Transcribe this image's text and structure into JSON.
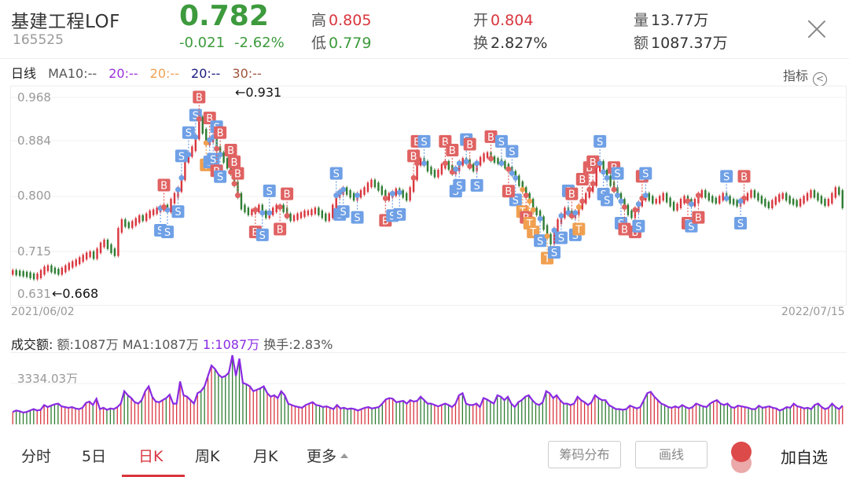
{
  "header": {
    "name": "基建工程LOF",
    "code": "165525",
    "price": "0.782",
    "change": "-0.021",
    "change_pct": "-2.62%",
    "high_label": "高",
    "high": "0.805",
    "low_label": "低",
    "low": "0.779",
    "open_label": "开",
    "open": "0.804",
    "turnover_label": "换",
    "turnover": "2.827%",
    "volume_label": "量",
    "volume": "13.77万",
    "amount_label": "额",
    "amount": "1087.37万",
    "close_icon": "close-icon"
  },
  "ma_legend": {
    "period": "日线",
    "items": [
      {
        "label": "MA10:--",
        "color": "#555555"
      },
      {
        "label": "20:--",
        "color": "#9b30d9"
      },
      {
        "label": "20:--",
        "color": "#f0a050"
      },
      {
        "label": "20:--",
        "color": "#1a1a80"
      },
      {
        "label": "30:--",
        "color": "#a0523a"
      }
    ],
    "indicator_label": "指标",
    "indicator_icon": "chevron-left-circle-icon"
  },
  "colors": {
    "up": "#d9363e",
    "down": "#2f7d32",
    "buy": "#e06262",
    "sell": "#6fa0e6",
    "t": "#f0a050",
    "ma": "#8a2be2"
  },
  "chart_data": [
    {
      "type": "candlestick",
      "title": "日线",
      "ylim": [
        0.631,
        0.968
      ],
      "yticks": [
        "0.968",
        "0.884",
        "0.800",
        "0.715",
        "0.631"
      ],
      "x_start": "2021/06/02",
      "x_end": "2022/07/15",
      "annotations": [
        {
          "text": "←0.931",
          "type": "max"
        },
        {
          "text": "←0.668",
          "type": "min"
        }
      ],
      "grid": true,
      "series_trend": [
        0.668,
        0.667,
        0.666,
        0.665,
        0.664,
        0.662,
        0.66,
        0.662,
        0.668,
        0.674,
        0.676,
        0.672,
        0.67,
        0.668,
        0.672,
        0.676,
        0.68,
        0.683,
        0.686,
        0.69,
        0.694,
        0.698,
        0.7,
        0.695,
        0.705,
        0.715,
        0.72,
        0.712,
        0.705,
        0.7,
        0.74,
        0.755,
        0.75,
        0.748,
        0.752,
        0.757,
        0.762,
        0.76,
        0.765,
        0.77,
        0.772,
        0.775,
        0.778,
        0.78,
        0.775,
        0.79,
        0.8,
        0.81,
        0.83,
        0.86,
        0.87,
        0.88,
        0.9,
        0.931,
        0.91,
        0.89,
        0.895,
        0.9,
        0.88,
        0.87,
        0.86,
        0.85,
        0.84,
        0.82,
        0.8,
        0.78,
        0.775,
        0.77,
        0.772,
        0.775,
        0.78,
        0.77,
        0.765,
        0.77,
        0.775,
        0.78,
        0.78,
        0.775,
        0.765,
        0.76,
        0.762,
        0.765,
        0.767,
        0.77,
        0.77,
        0.772,
        0.775,
        0.77,
        0.765,
        0.76,
        0.765,
        0.78,
        0.8,
        0.805,
        0.81,
        0.805,
        0.8,
        0.795,
        0.8,
        0.805,
        0.81,
        0.818,
        0.823,
        0.818,
        0.812,
        0.805,
        0.795,
        0.8,
        0.803,
        0.808,
        0.805,
        0.8,
        0.795,
        0.81,
        0.83,
        0.855,
        0.86,
        0.855,
        0.845,
        0.84,
        0.835,
        0.84,
        0.85,
        0.855,
        0.848,
        0.84,
        0.845,
        0.855,
        0.86,
        0.858,
        0.85,
        0.845,
        0.855,
        0.862,
        0.868,
        0.87,
        0.863,
        0.86,
        0.858,
        0.855,
        0.85,
        0.845,
        0.838,
        0.83,
        0.82,
        0.81,
        0.8,
        0.79,
        0.775,
        0.77,
        0.76,
        0.745,
        0.73,
        0.72,
        0.74,
        0.755,
        0.765,
        0.775,
        0.77,
        0.765,
        0.77,
        0.78,
        0.79,
        0.8,
        0.81,
        0.82,
        0.845,
        0.855,
        0.84,
        0.83,
        0.82,
        0.81,
        0.8,
        0.79,
        0.78,
        0.77,
        0.765,
        0.775,
        0.785,
        0.795,
        0.8,
        0.795,
        0.79,
        0.79,
        0.795,
        0.8,
        0.792,
        0.785,
        0.778,
        0.782,
        0.79,
        0.795,
        0.79,
        0.785,
        0.79,
        0.8,
        0.805,
        0.8,
        0.795,
        0.792,
        0.79,
        0.795,
        0.8,
        0.795,
        0.79,
        0.788,
        0.785,
        0.79,
        0.795,
        0.8,
        0.805,
        0.8,
        0.795,
        0.79,
        0.785,
        0.782,
        0.788,
        0.793,
        0.798,
        0.8,
        0.795,
        0.79,
        0.788,
        0.785,
        0.79,
        0.795,
        0.8,
        0.805,
        0.8,
        0.795,
        0.79,
        0.786,
        0.79,
        0.8,
        0.81,
        0.805,
        0.782
      ]
    },
    {
      "type": "bar",
      "title": "成交额",
      "ytick": "3334.03万",
      "series": [
        {
          "name": "额",
          "values_relative": [
            0.18,
            0.2,
            0.19,
            0.17,
            0.18,
            0.2,
            0.22,
            0.2,
            0.21,
            0.28,
            0.25,
            0.27,
            0.29,
            0.3,
            0.26,
            0.25,
            0.24,
            0.25,
            0.23,
            0.22,
            0.24,
            0.31,
            0.33,
            0.28,
            0.37,
            0.22,
            0.24,
            0.21,
            0.23,
            0.22,
            0.25,
            0.3,
            0.48,
            0.42,
            0.38,
            0.32,
            0.3,
            0.35,
            0.48,
            0.55,
            0.4,
            0.33,
            0.32,
            0.35,
            0.38,
            0.43,
            0.3,
            0.3,
            0.62,
            0.42,
            0.4,
            0.35,
            0.3,
            0.45,
            0.48,
            0.55,
            0.7,
            0.85,
            0.8,
            0.72,
            0.68,
            0.7,
            0.75,
            1.0,
            0.7,
            0.95,
            0.6,
            0.58,
            0.55,
            0.48,
            0.5,
            0.52,
            0.55,
            0.45,
            0.4,
            0.42,
            0.38,
            0.48,
            0.42,
            0.3,
            0.28,
            0.26,
            0.25,
            0.24,
            0.28,
            0.3,
            0.32,
            0.28,
            0.27,
            0.25,
            0.26,
            0.24,
            0.22,
            0.28,
            0.23,
            0.24,
            0.22,
            0.23,
            0.22,
            0.2,
            0.22,
            0.24,
            0.25,
            0.23,
            0.24,
            0.25,
            0.3,
            0.36,
            0.38,
            0.37,
            0.32,
            0.33,
            0.34,
            0.3,
            0.35,
            0.33,
            0.34,
            0.4,
            0.35,
            0.3,
            0.3,
            0.28,
            0.26,
            0.28,
            0.3,
            0.28,
            0.25,
            0.3,
            0.42,
            0.45,
            0.3,
            0.28,
            0.28,
            0.3,
            0.25,
            0.38,
            0.36,
            0.33,
            0.3,
            0.42,
            0.4,
            0.35,
            0.4,
            0.3,
            0.25,
            0.32,
            0.35,
            0.4,
            0.42,
            0.35,
            0.3,
            0.28,
            0.32,
            0.48,
            0.45,
            0.38,
            0.42,
            0.35,
            0.3,
            0.3,
            0.28,
            0.3,
            0.4,
            0.35,
            0.32,
            0.28,
            0.32,
            0.42,
            0.38,
            0.35,
            0.35,
            0.28,
            0.25,
            0.22,
            0.22,
            0.21,
            0.22,
            0.27,
            0.25,
            0.23,
            0.25,
            0.35,
            0.45,
            0.47,
            0.4,
            0.35,
            0.3,
            0.28,
            0.25,
            0.24,
            0.26,
            0.24,
            0.28,
            0.25,
            0.23,
            0.25,
            0.3,
            0.28,
            0.26,
            0.25,
            0.3,
            0.33,
            0.35,
            0.3,
            0.28,
            0.3,
            0.25,
            0.24,
            0.27,
            0.26,
            0.25,
            0.24,
            0.22,
            0.22,
            0.27,
            0.24,
            0.25,
            0.26,
            0.24,
            0.23,
            0.2,
            0.22,
            0.25,
            0.24,
            0.3,
            0.26,
            0.25,
            0.23,
            0.24,
            0.22,
            0.28,
            0.3,
            0.25,
            0.22,
            0.24,
            0.3,
            0.25,
            0.22,
            0.27
          ]
        }
      ]
    }
  ],
  "markers": [
    {
      "i": 42,
      "t": "S",
      "side": "below"
    },
    {
      "i": 44,
      "t": "S",
      "side": "below"
    },
    {
      "i": 43,
      "t": "B",
      "side": "above"
    },
    {
      "i": 52,
      "t": "S",
      "side": "above"
    },
    {
      "i": 53,
      "t": "B",
      "side": "above"
    },
    {
      "i": 56,
      "t": "B",
      "side": "above"
    },
    {
      "i": 55,
      "t": "T",
      "side": "below"
    },
    {
      "i": 56,
      "t": "S",
      "side": "below"
    },
    {
      "i": 57,
      "t": "S",
      "side": "below"
    },
    {
      "i": 58,
      "t": "S",
      "side": "above"
    },
    {
      "i": 59,
      "t": "B",
      "side": "above"
    },
    {
      "i": 62,
      "t": "B",
      "side": "above"
    },
    {
      "i": 63,
      "t": "B",
      "side": "above"
    },
    {
      "i": 64,
      "t": "B",
      "side": "above"
    },
    {
      "i": 58,
      "t": "B",
      "side": "below"
    },
    {
      "i": 59,
      "t": "S",
      "side": "below"
    },
    {
      "i": 50,
      "t": "S",
      "side": "above"
    },
    {
      "i": 48,
      "t": "S",
      "side": "above"
    },
    {
      "i": 47,
      "t": "S",
      "side": "below"
    },
    {
      "i": 69,
      "t": "B",
      "side": "below"
    },
    {
      "i": 71,
      "t": "S",
      "side": "below"
    },
    {
      "i": 73,
      "t": "S",
      "side": "above"
    },
    {
      "i": 76,
      "t": "B",
      "side": "below"
    },
    {
      "i": 78,
      "t": "B",
      "side": "above"
    },
    {
      "i": 92,
      "t": "S",
      "side": "above"
    },
    {
      "i": 93,
      "t": "S",
      "side": "below"
    },
    {
      "i": 94,
      "t": "S",
      "side": "below"
    },
    {
      "i": 98,
      "t": "S",
      "side": "below"
    },
    {
      "i": 106,
      "t": "B",
      "side": "below"
    },
    {
      "i": 108,
      "t": "S",
      "side": "below"
    },
    {
      "i": 110,
      "t": "S",
      "side": "below"
    },
    {
      "i": 114,
      "t": "B",
      "side": "above"
    },
    {
      "i": 115,
      "t": "B",
      "side": "above"
    },
    {
      "i": 117,
      "t": "S",
      "side": "above"
    },
    {
      "i": 123,
      "t": "B",
      "side": "above"
    },
    {
      "i": 125,
      "t": "B",
      "side": "above"
    },
    {
      "i": 126,
      "t": "S",
      "side": "below"
    },
    {
      "i": 127,
      "t": "S",
      "side": "below"
    },
    {
      "i": 129,
      "t": "S",
      "side": "above"
    },
    {
      "i": 130,
      "t": "B",
      "side": "above"
    },
    {
      "i": 132,
      "t": "S",
      "side": "below"
    },
    {
      "i": 136,
      "t": "B",
      "side": "above"
    },
    {
      "i": 139,
      "t": "S",
      "side": "above"
    },
    {
      "i": 142,
      "t": "S",
      "side": "above"
    },
    {
      "i": 143,
      "t": "S",
      "side": "below"
    },
    {
      "i": 141,
      "t": "B",
      "side": "below"
    },
    {
      "i": 145,
      "t": "T",
      "side": "below"
    },
    {
      "i": 146,
      "t": "B",
      "side": "below"
    },
    {
      "i": 147,
      "t": "T",
      "side": "below"
    },
    {
      "i": 148,
      "t": "T",
      "side": "below"
    },
    {
      "i": 150,
      "t": "S",
      "side": "below"
    },
    {
      "i": 152,
      "t": "T",
      "side": "below"
    },
    {
      "i": 154,
      "t": "S",
      "side": "below"
    },
    {
      "i": 156,
      "t": "S",
      "side": "below"
    },
    {
      "i": 158,
      "t": "S",
      "side": "above"
    },
    {
      "i": 159,
      "t": "B",
      "side": "above"
    },
    {
      "i": 160,
      "t": "S",
      "side": "below"
    },
    {
      "i": 161,
      "t": "T",
      "side": "below"
    },
    {
      "i": 162,
      "t": "B",
      "side": "above"
    },
    {
      "i": 164,
      "t": "B",
      "side": "above"
    },
    {
      "i": 165,
      "t": "B",
      "side": "above"
    },
    {
      "i": 167,
      "t": "S",
      "side": "above"
    },
    {
      "i": 168,
      "t": "S",
      "side": "below"
    },
    {
      "i": 169,
      "t": "S",
      "side": "below"
    },
    {
      "i": 171,
      "t": "B",
      "side": "above"
    },
    {
      "i": 172,
      "t": "S",
      "side": "above"
    },
    {
      "i": 173,
      "t": "S",
      "side": "below"
    },
    {
      "i": 174,
      "t": "B",
      "side": "below"
    },
    {
      "i": 177,
      "t": "B",
      "side": "below"
    },
    {
      "i": 178,
      "t": "S",
      "side": "below"
    },
    {
      "i": 179,
      "t": "B",
      "side": "above"
    },
    {
      "i": 180,
      "t": "S",
      "side": "above"
    },
    {
      "i": 192,
      "t": "B",
      "side": "below"
    },
    {
      "i": 193,
      "t": "S",
      "side": "below"
    },
    {
      "i": 195,
      "t": "B",
      "side": "below"
    },
    {
      "i": 203,
      "t": "S",
      "side": "above"
    },
    {
      "i": 208,
      "t": "B",
      "side": "above"
    },
    {
      "i": 207,
      "t": "S",
      "side": "below"
    }
  ],
  "volume_legend": {
    "title": "成交额:",
    "amount": "额:1087万",
    "ma1": "MA1:1087万",
    "ma1b": "1:1087万",
    "turnover": "换手:2.83%",
    "ytick": "3334.03万"
  },
  "tabs": [
    {
      "label": "分时",
      "active": false
    },
    {
      "label": "5日",
      "active": false
    },
    {
      "label": "日K",
      "active": true
    },
    {
      "label": "周K",
      "active": false
    },
    {
      "label": "月K",
      "active": false
    },
    {
      "label": "更多",
      "active": false
    }
  ],
  "buttons": {
    "chips": "筹码分布",
    "draw": "画线",
    "add_watchlist": "加自选"
  }
}
